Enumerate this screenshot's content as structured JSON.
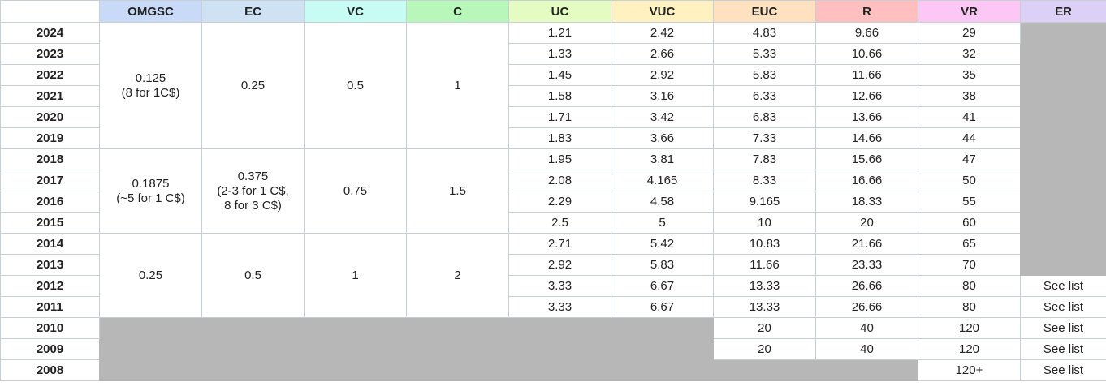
{
  "columns": [
    {
      "label": "OMGSC",
      "color": "#c9daf8"
    },
    {
      "label": "EC",
      "color": "#cfe2f3"
    },
    {
      "label": "VC",
      "color": "#c7fcf4"
    },
    {
      "label": "C",
      "color": "#b7f7b9"
    },
    {
      "label": "UC",
      "color": "#e4fcc1"
    },
    {
      "label": "VUC",
      "color": "#fff2c0"
    },
    {
      "label": "EUC",
      "color": "#ffe1c0"
    },
    {
      "label": "R",
      "color": "#ffbfbf"
    },
    {
      "label": "VR",
      "color": "#fcc7f4"
    },
    {
      "label": "ER",
      "color": "#dcd0f7"
    }
  ],
  "years": [
    "2024",
    "2023",
    "2022",
    "2021",
    "2020",
    "2019",
    "2018",
    "2017",
    "2016",
    "2015",
    "2014",
    "2013",
    "2012",
    "2011",
    "2010",
    "2009",
    "2008"
  ],
  "groups": [
    {
      "omgsc": "0.125\n(8 for 1C$)",
      "ec": "0.25",
      "vc": "0.5",
      "c": "1"
    },
    {
      "omgsc": "0.1875\n(~5 for 1 C$)",
      "ec": "0.375\n(2-3 for 1 C$,\n8 for 3 C$)",
      "vc": "0.75",
      "c": "1.5"
    },
    {
      "omgsc": "0.25",
      "ec": "0.5",
      "vc": "1",
      "c": "2"
    }
  ],
  "rows": [
    {
      "uc": "1.21",
      "vuc": "2.42",
      "euc": "4.83",
      "r": "9.66",
      "vr": "29",
      "er": ""
    },
    {
      "uc": "1.33",
      "vuc": "2.66",
      "euc": "5.33",
      "r": "10.66",
      "vr": "32",
      "er": ""
    },
    {
      "uc": "1.45",
      "vuc": "2.92",
      "euc": "5.83",
      "r": "11.66",
      "vr": "35",
      "er": ""
    },
    {
      "uc": "1.58",
      "vuc": "3.16",
      "euc": "6.33",
      "r": "12.66",
      "vr": "38",
      "er": ""
    },
    {
      "uc": "1.71",
      "vuc": "3.42",
      "euc": "6.83",
      "r": "13.66",
      "vr": "41",
      "er": ""
    },
    {
      "uc": "1.83",
      "vuc": "3.66",
      "euc": "7.33",
      "r": "14.66",
      "vr": "44",
      "er": ""
    },
    {
      "uc": "1.95",
      "vuc": "3.81",
      "euc": "7.83",
      "r": "15.66",
      "vr": "47",
      "er": ""
    },
    {
      "uc": "2.08",
      "vuc": "4.165",
      "euc": "8.33",
      "r": "16.66",
      "vr": "50",
      "er": ""
    },
    {
      "uc": "2.29",
      "vuc": "4.58",
      "euc": "9.165",
      "r": "18.33",
      "vr": "55",
      "er": ""
    },
    {
      "uc": "2.5",
      "vuc": "5",
      "euc": "10",
      "r": "20",
      "vr": "60",
      "er": ""
    },
    {
      "uc": "2.71",
      "vuc": "5.42",
      "euc": "10.83",
      "r": "21.66",
      "vr": "65",
      "er": ""
    },
    {
      "uc": "2.92",
      "vuc": "5.83",
      "euc": "11.66",
      "r": "23.33",
      "vr": "70",
      "er": ""
    },
    {
      "uc": "3.33",
      "vuc": "6.67",
      "euc": "13.33",
      "r": "26.66",
      "vr": "80",
      "er": "See list"
    },
    {
      "uc": "3.33",
      "vuc": "6.67",
      "euc": "13.33",
      "r": "26.66",
      "vr": "80",
      "er": "See list"
    },
    {
      "uc": "",
      "vuc": "",
      "euc": "20",
      "r": "40",
      "vr": "120",
      "er": "See list"
    },
    {
      "uc": "",
      "vuc": "",
      "euc": "20",
      "r": "40",
      "vr": "120",
      "er": "See list"
    },
    {
      "uc": "",
      "vuc": "",
      "euc": "",
      "r": "",
      "vr": "120+",
      "er": "See list"
    }
  ],
  "grey_color": "#b7b7b7"
}
